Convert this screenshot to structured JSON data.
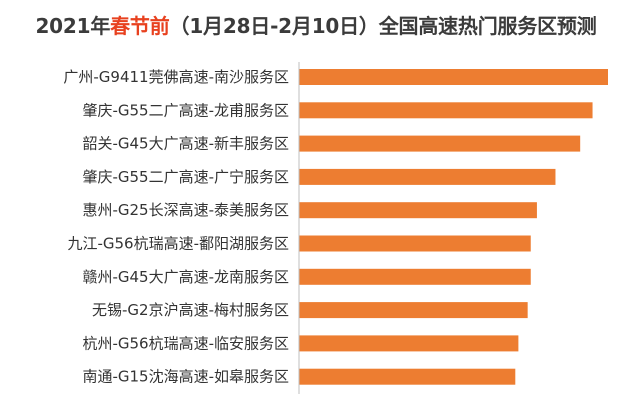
{
  "chart_data": {
    "type": "bar",
    "orientation": "horizontal",
    "title_parts": {
      "prefix": "2021年",
      "highlight": "春节前",
      "suffix": "（1月28日-2月10日）全国高速热门服务区预测"
    },
    "categories": [
      "广州-G9411莞佛高速-南沙服务区",
      "肇庆-G55二广高速-龙甫服务区",
      "韶关-G45大广高速-新丰服务区",
      "肇庆-G55二广高速-广宁服务区",
      "惠州-G25长深高速-泰美服务区",
      "九江-G56杭瑞高速-鄱阳湖服务区",
      "赣州-G45大广高速-龙南服务区",
      "无锡-G2京沪高速-梅村服务区",
      "杭州-G56杭瑞高速-临安服务区",
      "南通-G15沈海高速-如皋服务区"
    ],
    "values": [
      100,
      95,
      91,
      83,
      77,
      75,
      75,
      74,
      71,
      70
    ],
    "xlim": [
      0,
      100
    ],
    "bar_color": "#ed7d31",
    "highlight_color": "#e8411f",
    "axis_color": "#bfbfbf",
    "grid": false,
    "legend": "none"
  }
}
